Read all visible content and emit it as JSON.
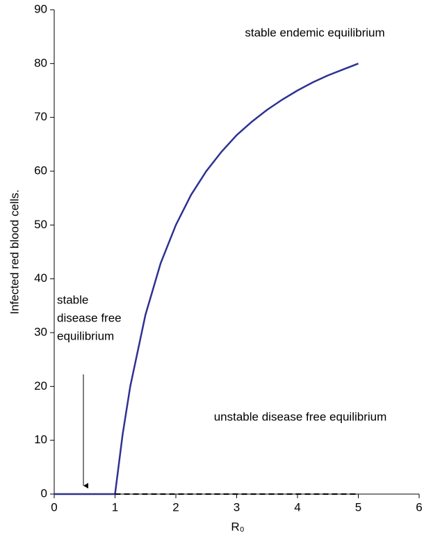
{
  "chart_data": {
    "type": "line",
    "x_label": "R₀",
    "y_label": "Infected red blood cells.",
    "xlim": [
      0,
      6
    ],
    "xticks": [
      0,
      1,
      2,
      3,
      4,
      5,
      6
    ],
    "ylim": [
      0,
      90
    ],
    "yticks": [
      0,
      10,
      20,
      30,
      40,
      50,
      60,
      70,
      80,
      90
    ],
    "series": [
      {
        "color": "#2e3192",
        "dash": false,
        "x": [
          0,
          1,
          1.125,
          1.25,
          1.5,
          1.75,
          2,
          2.25,
          2.5,
          2.75,
          3,
          3.25,
          3.5,
          3.75,
          4,
          4.25,
          4.5,
          4.75,
          5
        ],
        "values": [
          0,
          0,
          11.1,
          20,
          33.3,
          42.9,
          50,
          55.6,
          60,
          63.6,
          66.7,
          69.2,
          71.4,
          73.3,
          75,
          76.5,
          77.8,
          78.9,
          80
        ]
      },
      {
        "color": "#000000",
        "dash": true,
        "x": [
          1,
          5
        ],
        "values": [
          0,
          0
        ]
      }
    ],
    "annotations": [
      {
        "lines": [
          "stable endemic equilibrium"
        ]
      },
      {
        "lines": [
          "stable",
          "disease free",
          "equilibrium"
        ]
      },
      {
        "lines": [
          "unstable disease free equilibrium"
        ]
      }
    ]
  }
}
